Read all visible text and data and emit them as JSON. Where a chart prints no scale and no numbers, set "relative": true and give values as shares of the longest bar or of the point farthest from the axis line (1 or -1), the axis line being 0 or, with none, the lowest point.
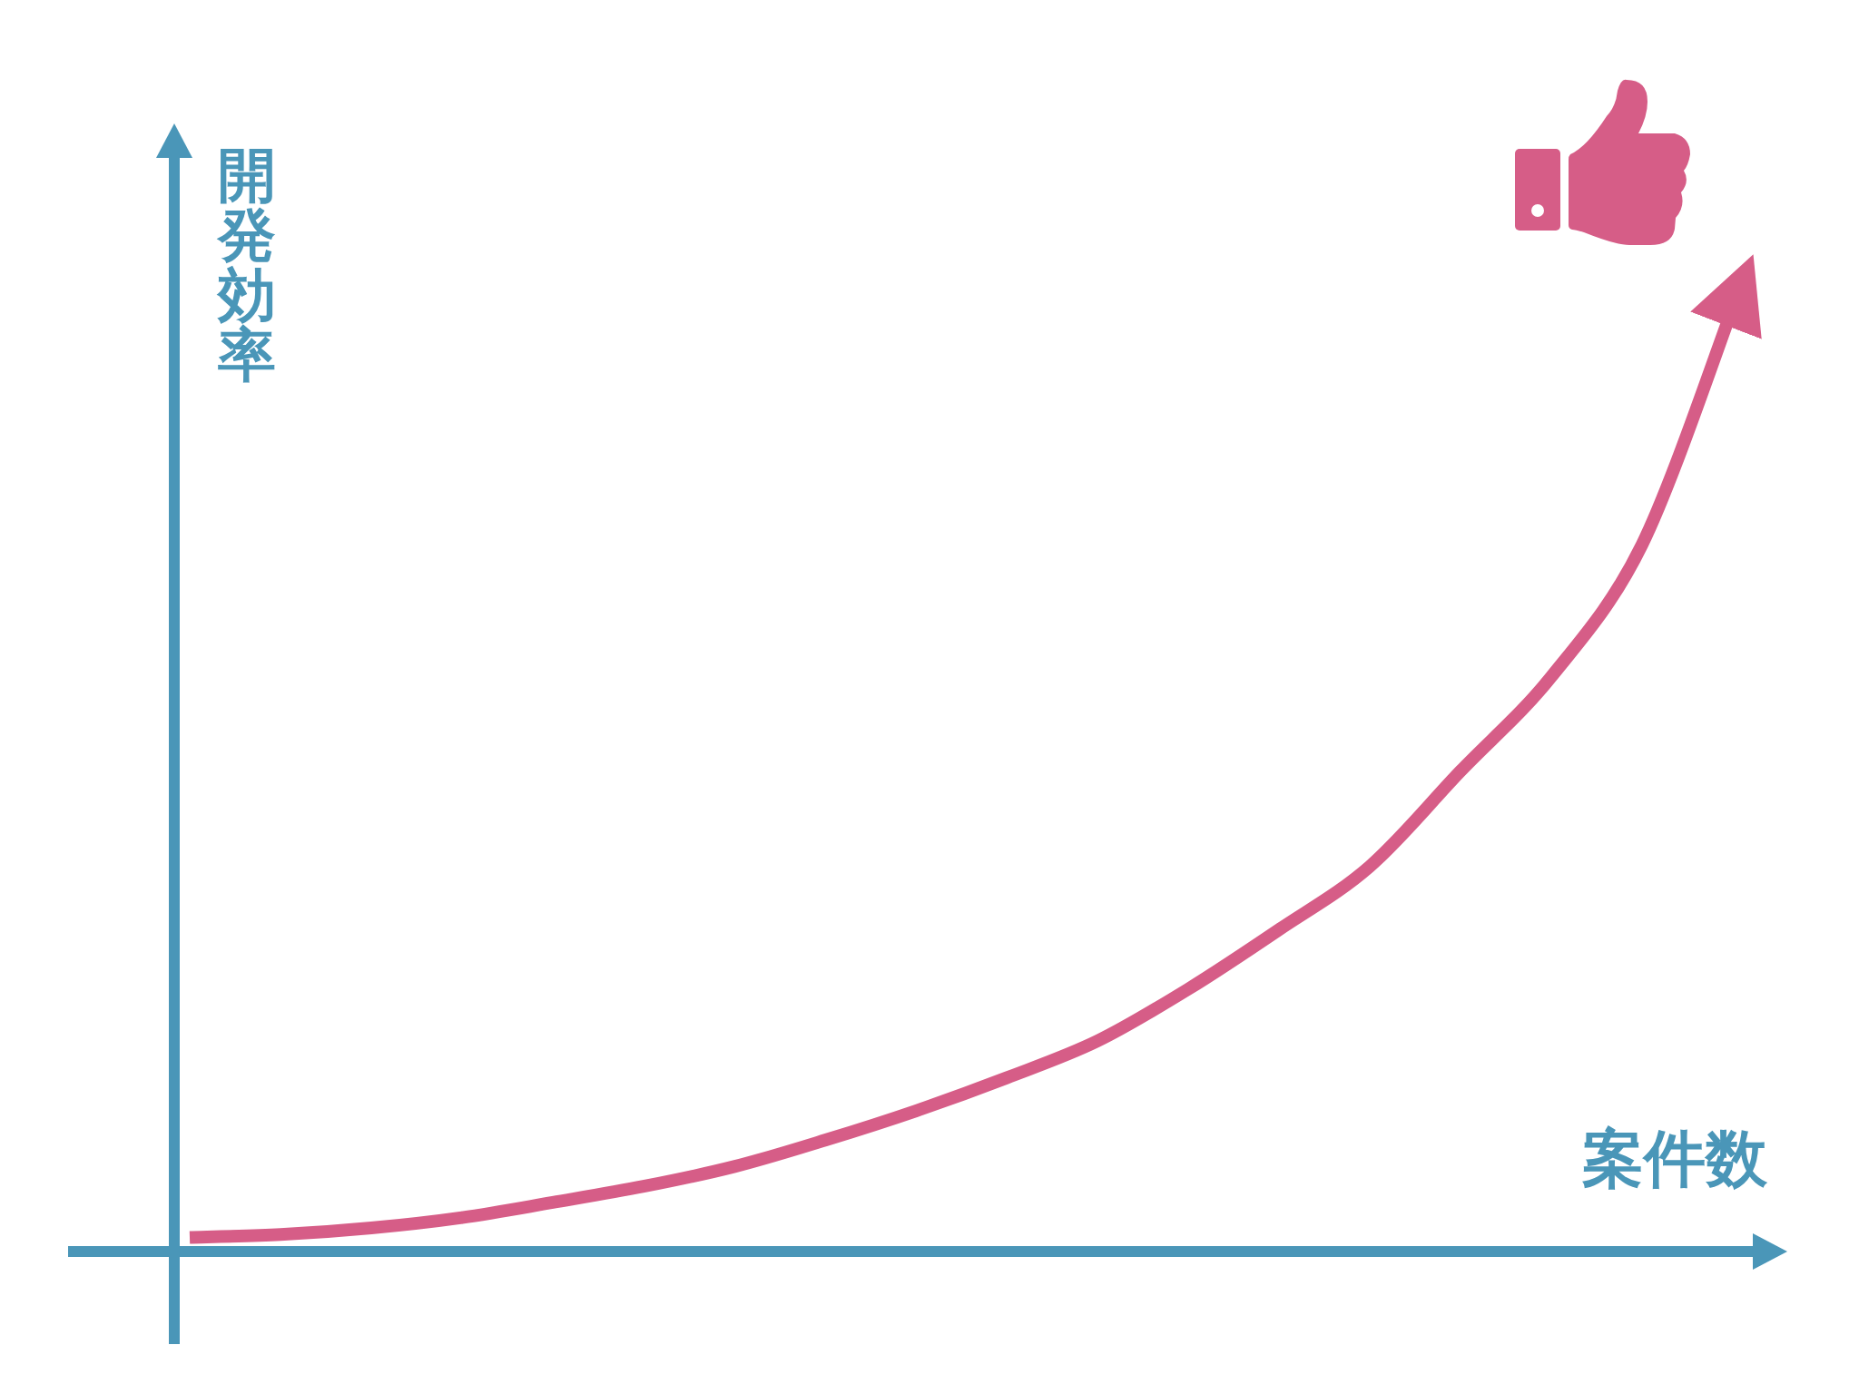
{
  "chart_data": {
    "type": "line",
    "relative": true,
    "xlabel": "案件数",
    "ylabel": "開発効率",
    "categories": [
      null,
      null,
      null,
      null,
      null,
      null,
      null,
      null,
      null,
      null,
      null,
      null,
      null,
      null,
      null,
      null,
      null,
      null
    ],
    "series": [
      {
        "color": "#d65d87",
        "values": [
          0.015,
          0.018,
          0.025,
          0.036,
          0.052,
          0.069,
          0.09,
          0.118,
          0.149,
          0.184,
          0.223,
          0.278,
          0.341,
          0.408,
          0.509,
          0.609,
          0.749,
          1
        ]
      }
    ]
  }
}
